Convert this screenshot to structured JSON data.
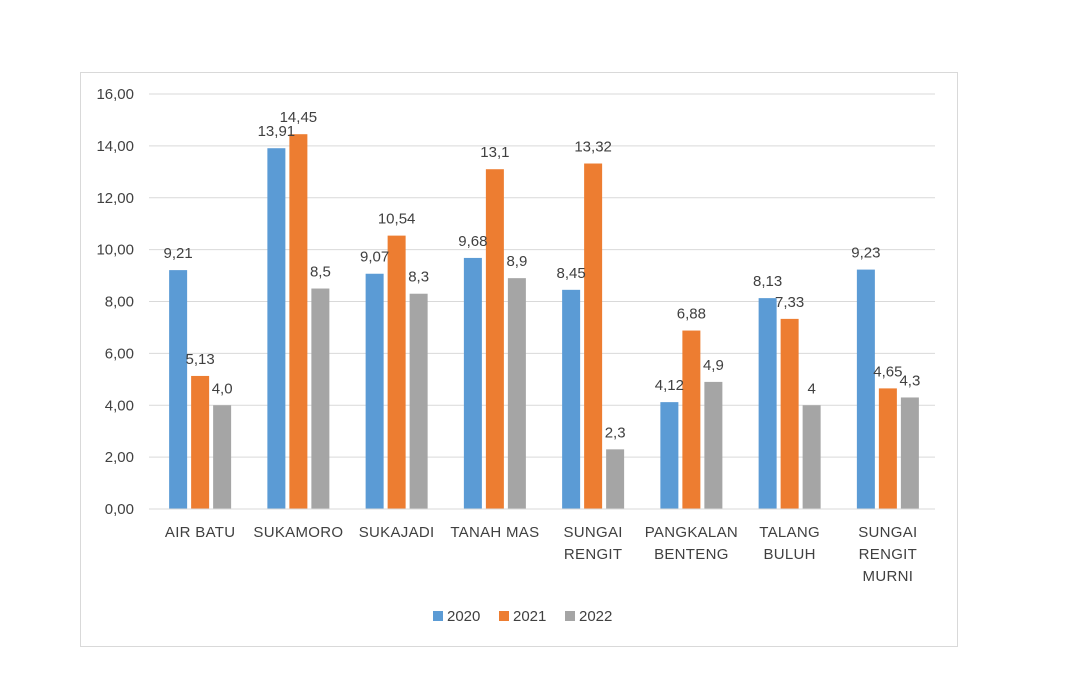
{
  "chart_data": {
    "type": "bar",
    "title": "",
    "xlabel": "",
    "ylabel": "",
    "ylim": [
      0,
      16
    ],
    "yticks": [
      0,
      2,
      4,
      6,
      8,
      10,
      12,
      14,
      16
    ],
    "ytick_labels": [
      "0,00",
      "2,00",
      "4,00",
      "6,00",
      "8,00",
      "10,00",
      "12,00",
      "14,00",
      "16,00"
    ],
    "grid": true,
    "legend_position": "bottom",
    "categories": [
      [
        "AIR BATU"
      ],
      [
        "SUKAMORO"
      ],
      [
        "SUKAJADI"
      ],
      [
        "TANAH MAS"
      ],
      [
        "SUNGAI",
        "RENGIT"
      ],
      [
        "PANGKALAN",
        "BENTENG"
      ],
      [
        "TALANG",
        "BULUH"
      ],
      [
        "SUNGAI",
        "RENGIT",
        "MURNI"
      ]
    ],
    "series": [
      {
        "name": "2020",
        "color": "#5b9bd5",
        "values": [
          9.21,
          13.91,
          9.07,
          9.68,
          8.45,
          4.12,
          8.13,
          9.23
        ],
        "labels": [
          "9,21",
          "13,91",
          "9,07",
          "9,68",
          "8,45",
          "4,12",
          "8,13",
          "9,23"
        ]
      },
      {
        "name": "2021",
        "color": "#ed7d31",
        "values": [
          5.13,
          14.45,
          10.54,
          13.1,
          13.32,
          6.88,
          7.33,
          4.65
        ],
        "labels": [
          "5,13",
          "14,45",
          "10,54",
          "13,1",
          "13,32",
          "6,88",
          "7,33",
          "4,65"
        ]
      },
      {
        "name": "2022",
        "color": "#a5a5a5",
        "values": [
          4.0,
          8.5,
          8.3,
          8.9,
          2.3,
          4.9,
          4.0,
          4.3
        ],
        "labels": [
          "4,0",
          "8,5",
          "8,3",
          "8,9",
          "2,3",
          "4,9",
          "4",
          "4,3"
        ]
      }
    ],
    "gridline_color": "#d9d9d9"
  }
}
